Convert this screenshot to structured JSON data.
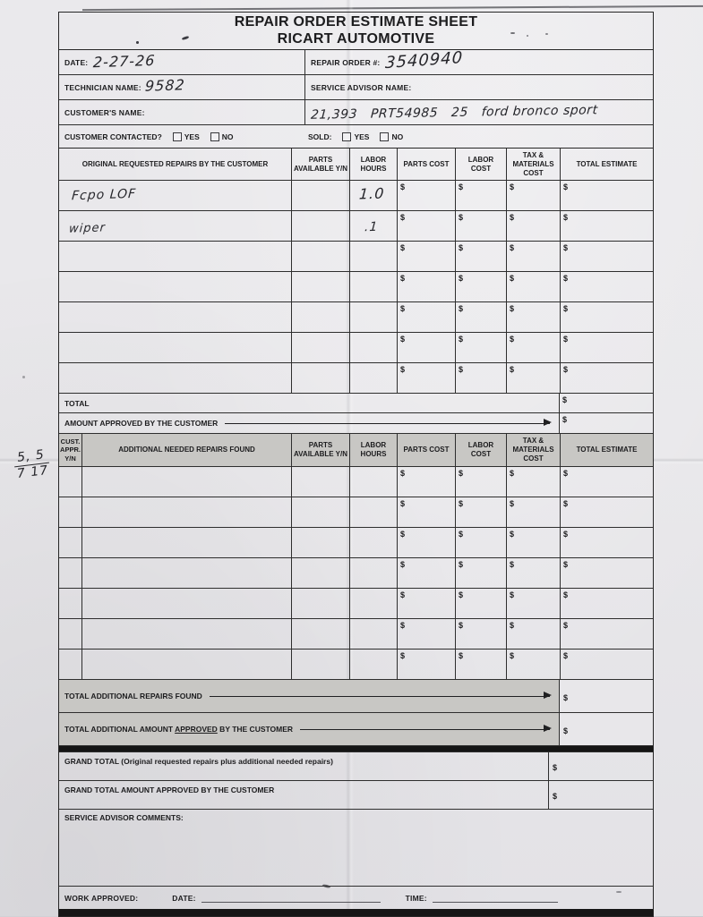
{
  "currency": "$",
  "title_line1": "REPAIR ORDER ESTIMATE SHEET",
  "title_line2": "RICART AUTOMOTIVE",
  "fields": {
    "date_label": "DATE:",
    "date_value": "2-27-26",
    "repair_order_label": "REPAIR ORDER #:",
    "repair_order_value": "3540940",
    "technician_label": "TECHNICIAN NAME:",
    "technician_value": "9582",
    "service_advisor_label": "SERVICE ADVISOR NAME:",
    "service_advisor_value": "",
    "customer_label": "CUSTOMER'S NAME:",
    "customer_value": "",
    "vehicle_note_value": "21,393   PRT54985   25   ford bronco sport"
  },
  "contact_row": {
    "customer_contacted_label": "CUSTOMER CONTACTED?",
    "sold_label": "SOLD:",
    "yes_label": "YES",
    "no_label": "NO"
  },
  "table1": {
    "headers": {
      "description": "ORIGINAL REQUESTED REPAIRS BY THE CUSTOMER",
      "parts_available": "PARTS AVAILABLE Y/N",
      "labor_hours": "LABOR HOURS",
      "parts_cost": "PARTS COST",
      "labor_cost": "LABOR COST",
      "tax_materials": "TAX & MATERIALS COST",
      "total_estimate": "TOTAL ESTIMATE"
    },
    "rows": [
      {
        "description": "Fcpo LOF",
        "parts_available": "",
        "labor_hours": "1.0"
      },
      {
        "description": "wiper",
        "parts_available": "",
        "labor_hours": ".1"
      },
      {},
      {},
      {},
      {},
      {}
    ],
    "total_label": "TOTAL",
    "amount_approved_label": "AMOUNT APPROVED BY THE CUSTOMER"
  },
  "table2": {
    "headers": {
      "cust_appr": "CUST. APPR. Y/N",
      "description": "ADDITIONAL NEEDED REPAIRS FOUND",
      "parts_available": "PARTS AVAILABLE Y/N",
      "labor_hours": "LABOR HOURS",
      "parts_cost": "PARTS COST",
      "labor_cost": "LABOR COST",
      "tax_materials": "TAX & MATERIALS COST",
      "total_estimate": "TOTAL ESTIMATE"
    },
    "row_count": 7,
    "total_additional_label": "TOTAL ADDITIONAL REPAIRS FOUND",
    "total_additional_approved_prefix": "TOTAL ADDITIONAL AMOUNT ",
    "total_additional_approved_underlined": "APPROVED",
    "total_additional_approved_suffix": " BY THE CUSTOMER"
  },
  "summary": {
    "grand_total_label": "GRAND TOTAL (Original requested repairs plus additional needed repairs)",
    "grand_total_approved_label": "GRAND TOTAL AMOUNT APPROVED BY THE CUSTOMER",
    "service_advisor_comments_label": "SERVICE ADVISOR COMMENTS:"
  },
  "footer": {
    "work_approved_label": "WORK APPROVED:",
    "date_label": "DATE:",
    "time_label": "TIME:"
  },
  "margin_note": {
    "top": "5, 5",
    "bottom": "7 17"
  }
}
